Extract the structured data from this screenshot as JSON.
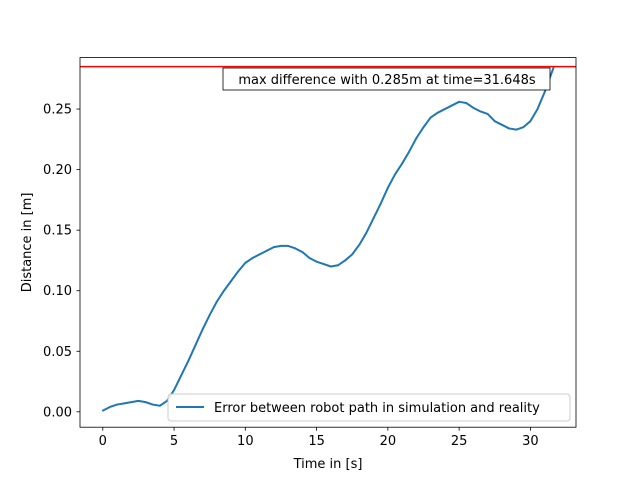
{
  "chart_data": {
    "type": "line",
    "title": "",
    "xlabel": "Time in [s]",
    "ylabel": "Distance in [m]",
    "xlim": [
      -1.6,
      33.2
    ],
    "ylim": [
      -0.0127,
      0.2925
    ],
    "xticks": [
      0,
      5,
      10,
      15,
      20,
      25,
      30
    ],
    "xtick_labels": [
      "0",
      "5",
      "10",
      "15",
      "20",
      "25",
      "30"
    ],
    "yticks": [
      0.0,
      0.05,
      0.1,
      0.15,
      0.2,
      0.25
    ],
    "ytick_labels": [
      "0.00",
      "0.05",
      "0.10",
      "0.15",
      "0.20",
      "0.25"
    ],
    "grid": false,
    "legend_position": "lower-right",
    "series": [
      {
        "name": "Error between robot path in simulation and reality",
        "color": "#1f77b4",
        "x": [
          0,
          0.5,
          1,
          1.5,
          2,
          2.5,
          3,
          3.5,
          4,
          4.5,
          5,
          5.5,
          6,
          6.5,
          7,
          7.5,
          8,
          8.5,
          9,
          9.5,
          10,
          10.5,
          11,
          11.5,
          12,
          12.5,
          13,
          13.5,
          14,
          14.5,
          15,
          15.5,
          16,
          16.5,
          17,
          17.5,
          18,
          18.5,
          19,
          19.5,
          20,
          20.5,
          21,
          21.5,
          22,
          22.5,
          23,
          23.5,
          24,
          24.5,
          25,
          25.5,
          26,
          26.5,
          27,
          27.5,
          28,
          28.5,
          29,
          29.5,
          30,
          30.5,
          31,
          31.648
        ],
        "y": [
          0.001,
          0.004,
          0.006,
          0.007,
          0.008,
          0.009,
          0.008,
          0.006,
          0.005,
          0.009,
          0.018,
          0.03,
          0.042,
          0.055,
          0.068,
          0.08,
          0.091,
          0.1,
          0.108,
          0.116,
          0.123,
          0.127,
          0.13,
          0.133,
          0.136,
          0.137,
          0.137,
          0.135,
          0.132,
          0.127,
          0.124,
          0.122,
          0.12,
          0.121,
          0.125,
          0.13,
          0.138,
          0.148,
          0.16,
          0.172,
          0.185,
          0.196,
          0.205,
          0.215,
          0.226,
          0.235,
          0.243,
          0.247,
          0.25,
          0.253,
          0.256,
          0.255,
          0.251,
          0.248,
          0.246,
          0.24,
          0.237,
          0.234,
          0.233,
          0.235,
          0.24,
          0.25,
          0.264,
          0.285
        ]
      }
    ],
    "hline": {
      "y": 0.285,
      "color": "#ff0000"
    },
    "annotation": {
      "text": "max difference with 0.285m at time=31.648s",
      "position": "top-right"
    }
  }
}
